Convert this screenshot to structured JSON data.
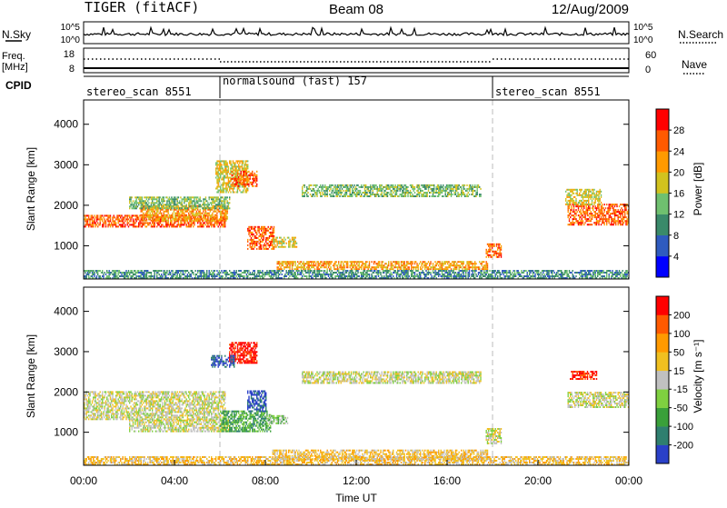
{
  "header": {
    "radar": "TIGER (fitACF)",
    "beam": "Beam 08",
    "date": "12/Aug/2009"
  },
  "nsky_panel": {
    "left_label": "N.Sky",
    "right_label": "N.Search",
    "left_ticks": [
      "10^5",
      "10^0"
    ],
    "right_ticks": [
      "10^5",
      "10^0"
    ]
  },
  "freq_panel": {
    "label_line1": "Freq.",
    "label_line2": "[MHz]",
    "left_ticks": [
      "18",
      "8"
    ],
    "right_label": "Nave",
    "right_ticks": [
      "60",
      "0"
    ]
  },
  "cpid": {
    "label": "CPID",
    "segments": [
      {
        "name": "stereo_scan 8551",
        "start_hour": 0,
        "end_hour": 6
      },
      {
        "name": "normalsound (fast) 157",
        "start_hour": 6,
        "end_hour": 18
      },
      {
        "name": "stereo_scan 8551",
        "start_hour": 18,
        "end_hour": 24
      }
    ]
  },
  "time_axis": {
    "label": "Time UT",
    "ticks": [
      "00:00",
      "04:00",
      "08:00",
      "12:00",
      "16:00",
      "20:00",
      "00:00"
    ],
    "range_hours": [
      0,
      24
    ]
  },
  "chart_data": [
    {
      "type": "heatmap",
      "parameter": "Power",
      "ylabel": "Slant Range [km]",
      "yticks": [
        1000,
        2000,
        3000,
        4000
      ],
      "ylim": [
        180,
        4600
      ],
      "colorbar_label": "Power [dB]",
      "colorbar_ticks": [
        "4",
        "8",
        "12",
        "16",
        "20",
        "24",
        "28"
      ],
      "colors": [
        "#0000ff",
        "#2f5bbf",
        "#3a8a6a",
        "#6fc06f",
        "#d2c21e",
        "#ff9a00",
        "#ff5a00",
        "#ff0000"
      ],
      "regions": [
        {
          "t0": 0,
          "t1": 6.2,
          "r0": 1450,
          "r1": 1750,
          "level": 6
        },
        {
          "t0": 2.5,
          "t1": 6.3,
          "r0": 1600,
          "r1": 2000,
          "level": 5
        },
        {
          "t0": 2,
          "t1": 6.4,
          "r0": 1900,
          "r1": 2200,
          "level": 3
        },
        {
          "t0": 5.8,
          "t1": 7.2,
          "r0": 2300,
          "r1": 3100,
          "level": 4
        },
        {
          "t0": 6.5,
          "t1": 7.6,
          "r0": 2450,
          "r1": 2850,
          "level": 6
        },
        {
          "t0": 7.2,
          "t1": 8.4,
          "r0": 900,
          "r1": 1450,
          "level": 6
        },
        {
          "t0": 8.3,
          "t1": 9.4,
          "r0": 950,
          "r1": 1200,
          "level": 4
        },
        {
          "t0": 9.6,
          "t1": 17.5,
          "r0": 2200,
          "r1": 2500,
          "level": 3
        },
        {
          "t0": 8.5,
          "t1": 17.8,
          "r0": 400,
          "r1": 600,
          "level": 5
        },
        {
          "t0": 17.7,
          "t1": 18.4,
          "r0": 700,
          "r1": 1050,
          "level": 6
        },
        {
          "t0": 21.3,
          "t1": 24,
          "r0": 1500,
          "r1": 2000,
          "level": 6
        },
        {
          "t0": 21.2,
          "t1": 22.8,
          "r0": 2000,
          "r1": 2400,
          "level": 4
        },
        {
          "t0": 0,
          "t1": 24,
          "r0": 180,
          "r1": 400,
          "level": 2
        }
      ]
    },
    {
      "type": "heatmap",
      "parameter": "Velocity",
      "ylabel": "Slant Range [km]",
      "yticks": [
        1000,
        2000,
        3000,
        4000
      ],
      "ylim": [
        180,
        4600
      ],
      "colorbar_label": "Velocity [m s⁻¹]",
      "colorbar_ticks": [
        "200",
        "100",
        "50",
        "15",
        "-15",
        "-50",
        "-100",
        "-200"
      ],
      "colors": [
        "#2a40c8",
        "#2f7f6f",
        "#3aa03a",
        "#7fd040",
        "#c0c0c0",
        "#f0c020",
        "#ff9a00",
        "#ff5a00",
        "#ff0000"
      ],
      "regions": [
        {
          "t0": 0,
          "t1": 6.2,
          "r0": 1300,
          "r1": 2000,
          "level": 4
        },
        {
          "t0": 2,
          "t1": 6.4,
          "r0": 1000,
          "r1": 1300,
          "level": 4
        },
        {
          "t0": 6,
          "t1": 8.2,
          "r0": 1000,
          "r1": 1500,
          "level": 2
        },
        {
          "t0": 7.2,
          "t1": 8,
          "r0": 1500,
          "r1": 2000,
          "level": 0
        },
        {
          "t0": 6.4,
          "t1": 7.6,
          "r0": 2700,
          "r1": 3200,
          "level": 8
        },
        {
          "t0": 5.6,
          "t1": 6.6,
          "r0": 2600,
          "r1": 2900,
          "level": 0
        },
        {
          "t0": 8,
          "t1": 9,
          "r0": 1200,
          "r1": 1400,
          "level": 3
        },
        {
          "t0": 9.6,
          "t1": 17.5,
          "r0": 2200,
          "r1": 2500,
          "level": 4
        },
        {
          "t0": 8.3,
          "t1": 17.8,
          "r0": 300,
          "r1": 550,
          "level": 5
        },
        {
          "t0": 17.7,
          "t1": 18.4,
          "r0": 700,
          "r1": 1100,
          "level": 4
        },
        {
          "t0": 21.3,
          "t1": 24,
          "r0": 1600,
          "r1": 2000,
          "level": 4
        },
        {
          "t0": 21.4,
          "t1": 22.6,
          "r0": 2300,
          "r1": 2500,
          "level": 8
        },
        {
          "t0": 0,
          "t1": 24,
          "r0": 180,
          "r1": 380,
          "level": 5
        }
      ]
    }
  ]
}
